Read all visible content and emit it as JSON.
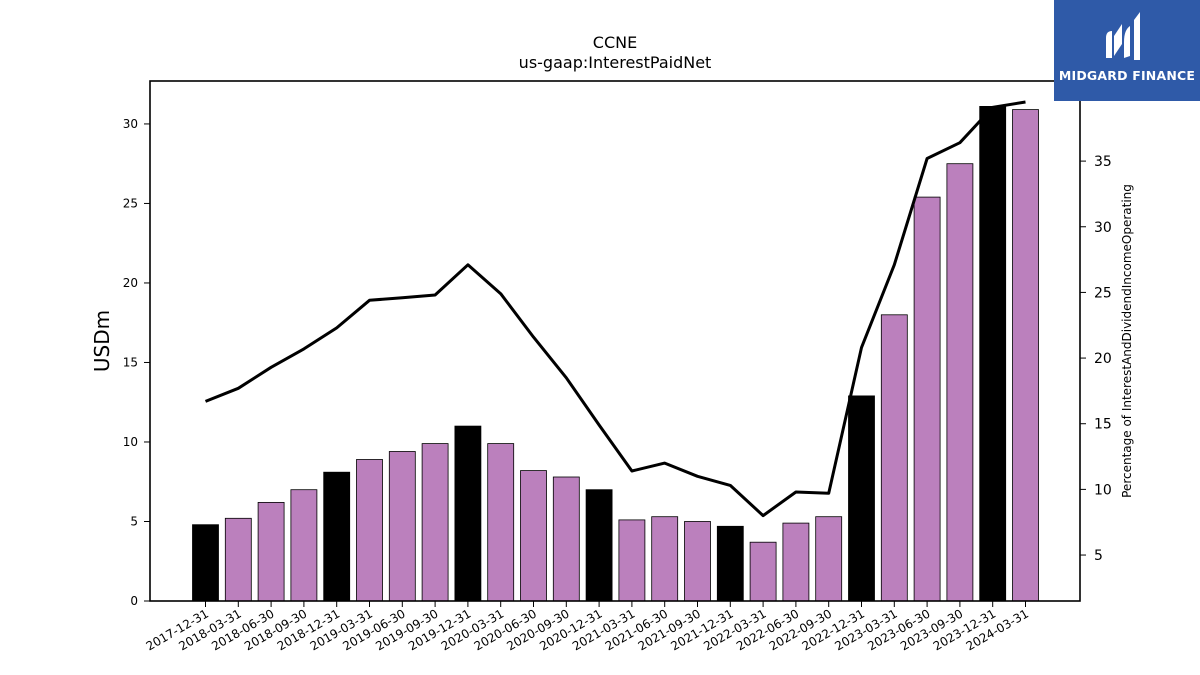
{
  "brand": {
    "name": "MIDGARD FINANCE",
    "color": "#2f5aa8"
  },
  "chart_data": {
    "type": "bar",
    "title": "CCNE",
    "subtitle": "us-gaap:InterestPaidNet",
    "ylabel": "USDm",
    "y2label": "Percentage of InterestAndDividendIncomeOperating",
    "ylim": [
      0,
      32.7
    ],
    "y2lim": [
      1.5,
      41.1
    ],
    "yticks": [
      "0",
      "5",
      "10",
      "15",
      "20",
      "25",
      "30"
    ],
    "y2ticks": [
      "5",
      "10",
      "15",
      "20",
      "25",
      "30",
      "35",
      "40"
    ],
    "grid": false,
    "categories": [
      "2017-12-31",
      "2018-03-31",
      "2018-06-30",
      "2018-09-30",
      "2018-12-31",
      "2019-03-31",
      "2019-06-30",
      "2019-09-30",
      "2019-12-31",
      "2020-03-31",
      "2020-06-30",
      "2020-09-30",
      "2020-12-31",
      "2021-03-31",
      "2021-06-30",
      "2021-09-30",
      "2021-12-31",
      "2022-03-31",
      "2022-06-30",
      "2022-09-30",
      "2022-12-31",
      "2023-03-31",
      "2023-06-30",
      "2023-09-30",
      "2023-12-31",
      "2024-03-31"
    ],
    "series": [
      {
        "kind": "bar",
        "values": [
          4.8,
          5.2,
          6.2,
          7.0,
          8.1,
          8.9,
          9.4,
          9.9,
          11.0,
          9.9,
          8.2,
          7.8,
          7.0,
          5.1,
          5.3,
          5.0,
          4.7,
          3.7,
          4.9,
          5.3,
          12.9,
          18.0,
          25.4,
          27.5,
          31.1,
          30.9
        ],
        "colors": [
          "#000000",
          "#bb80bd",
          "#bb80bd",
          "#bb80bd",
          "#000000",
          "#bb80bd",
          "#bb80bd",
          "#bb80bd",
          "#000000",
          "#bb80bd",
          "#bb80bd",
          "#bb80bd",
          "#000000",
          "#bb80bd",
          "#bb80bd",
          "#bb80bd",
          "#000000",
          "#bb80bd",
          "#bb80bd",
          "#bb80bd",
          "#000000",
          "#bb80bd",
          "#bb80bd",
          "#bb80bd",
          "#000000",
          "#bb80bd"
        ]
      },
      {
        "kind": "line",
        "axis": "right",
        "color": "#000000",
        "values": [
          16.7,
          17.7,
          19.3,
          20.7,
          22.3,
          24.4,
          24.6,
          24.8,
          27.1,
          24.9,
          21.6,
          18.5,
          14.9,
          11.4,
          12.0,
          11.0,
          10.3,
          8.0,
          9.8,
          9.7,
          20.8,
          27.1,
          35.2,
          36.4,
          39.1,
          39.5
        ]
      }
    ]
  }
}
